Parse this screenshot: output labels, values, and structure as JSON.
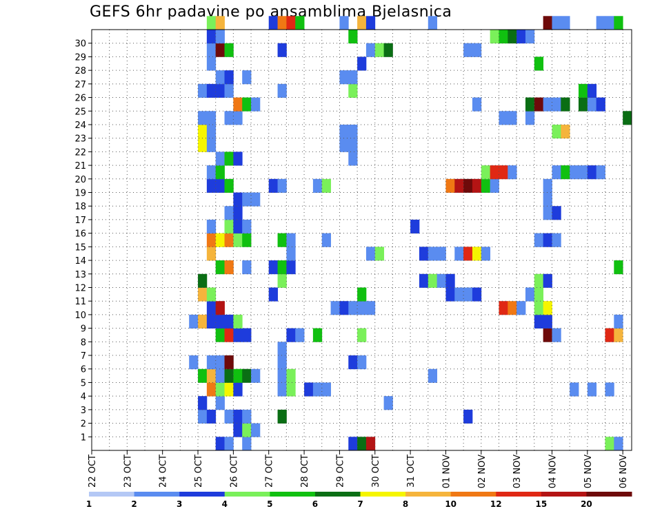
{
  "chart_data": {
    "type": "heatmap",
    "title": "GEFS 6hr padavine po ansamblima Bjelasnica",
    "xlabel": "",
    "ylabel": "",
    "x_ticks": [
      "22 OCT",
      "23 OCT",
      "24 OCT",
      "25 OCT",
      "26 OCT",
      "27 OCT",
      "28 OCT",
      "29 OCT",
      "30 OCT",
      "31 OCT",
      "01 NOV",
      "02 NOV",
      "03 NOV",
      "04 NOV",
      "05 NOV",
      "06 NOV"
    ],
    "y_ticks": [
      "1",
      "2",
      "3",
      "4",
      "5",
      "6",
      "7",
      "8",
      "9",
      "10",
      "11",
      "12",
      "13",
      "14",
      "15",
      "16",
      "17",
      "18",
      "19",
      "20",
      "21",
      "22",
      "23",
      "24",
      "25",
      "26",
      "27",
      "28",
      "29",
      "30"
    ],
    "y_range": [
      0,
      30
    ],
    "grid": true,
    "colorbar": {
      "levels": [
        "1",
        "2",
        "3",
        "4",
        "5",
        "6",
        "7",
        "8",
        "10",
        "12",
        "15",
        "20"
      ],
      "colors": [
        "#b4c8f5",
        "#5a8cf0",
        "#1e3cdc",
        "#7af05a",
        "#10c010",
        "#0a6e14",
        "#f5f500",
        "#f5b43c",
        "#f07814",
        "#e02814",
        "#b41414",
        "#6e0a0a"
      ]
    },
    "cells": [
      {
        "m": 0,
        "t": 14,
        "c": 2
      },
      {
        "m": 0,
        "t": 15,
        "c": 1
      },
      {
        "m": 0,
        "t": 17,
        "c": 1
      },
      {
        "m": 0,
        "t": 29,
        "c": 2
      },
      {
        "m": 0,
        "t": 30,
        "c": 5
      },
      {
        "m": 0,
        "t": 31,
        "c": 10
      },
      {
        "m": 0,
        "t": 58,
        "c": 3
      },
      {
        "m": 0,
        "t": 59,
        "c": 1
      },
      {
        "m": 1,
        "t": 16,
        "c": 2
      },
      {
        "m": 1,
        "t": 17,
        "c": 3
      },
      {
        "m": 1,
        "t": 18,
        "c": 1
      },
      {
        "m": 2,
        "t": 12,
        "c": 1
      },
      {
        "m": 2,
        "t": 13,
        "c": 2
      },
      {
        "m": 2,
        "t": 15,
        "c": 1
      },
      {
        "m": 2,
        "t": 16,
        "c": 2
      },
      {
        "m": 2,
        "t": 17,
        "c": 1
      },
      {
        "m": 2,
        "t": 21,
        "c": 5
      },
      {
        "m": 2,
        "t": 42,
        "c": 2
      },
      {
        "m": 3,
        "t": 12,
        "c": 2
      },
      {
        "m": 3,
        "t": 14,
        "c": 1
      },
      {
        "m": 3,
        "t": 33,
        "c": 1
      },
      {
        "m": 4,
        "t": 13,
        "c": 8
      },
      {
        "m": 4,
        "t": 14,
        "c": 3
      },
      {
        "m": 4,
        "t": 15,
        "c": 6
      },
      {
        "m": 4,
        "t": 16,
        "c": 2
      },
      {
        "m": 4,
        "t": 21,
        "c": 1
      },
      {
        "m": 4,
        "t": 22,
        "c": 3
      },
      {
        "m": 4,
        "t": 24,
        "c": 2
      },
      {
        "m": 4,
        "t": 25,
        "c": 1
      },
      {
        "m": 4,
        "t": 26,
        "c": 1
      },
      {
        "m": 4,
        "t": 54,
        "c": 1
      },
      {
        "m": 4,
        "t": 56,
        "c": 1
      },
      {
        "m": 4,
        "t": 58,
        "c": 1
      },
      {
        "m": 5,
        "t": 12,
        "c": 4
      },
      {
        "m": 5,
        "t": 13,
        "c": 7
      },
      {
        "m": 5,
        "t": 14,
        "c": 1
      },
      {
        "m": 5,
        "t": 15,
        "c": 5
      },
      {
        "m": 5,
        "t": 16,
        "c": 4
      },
      {
        "m": 5,
        "t": 17,
        "c": 5
      },
      {
        "m": 5,
        "t": 18,
        "c": 1
      },
      {
        "m": 5,
        "t": 21,
        "c": 1
      },
      {
        "m": 5,
        "t": 22,
        "c": 3
      },
      {
        "m": 5,
        "t": 38,
        "c": 1
      },
      {
        "m": 6,
        "t": 11,
        "c": 1
      },
      {
        "m": 6,
        "t": 13,
        "c": 1
      },
      {
        "m": 6,
        "t": 14,
        "c": 1
      },
      {
        "m": 6,
        "t": 15,
        "c": 11
      },
      {
        "m": 6,
        "t": 21,
        "c": 1
      },
      {
        "m": 6,
        "t": 29,
        "c": 2
      },
      {
        "m": 6,
        "t": 30,
        "c": 1
      },
      {
        "m": 7,
        "t": 21,
        "c": 1
      },
      {
        "m": 8,
        "t": 14,
        "c": 4
      },
      {
        "m": 8,
        "t": 15,
        "c": 9
      },
      {
        "m": 8,
        "t": 16,
        "c": 2
      },
      {
        "m": 8,
        "t": 17,
        "c": 2
      },
      {
        "m": 8,
        "t": 22,
        "c": 2
      },
      {
        "m": 8,
        "t": 23,
        "c": 1
      },
      {
        "m": 8,
        "t": 25,
        "c": 4
      },
      {
        "m": 8,
        "t": 30,
        "c": 3
      },
      {
        "m": 8,
        "t": 51,
        "c": 11
      },
      {
        "m": 8,
        "t": 52,
        "c": 1
      },
      {
        "m": 8,
        "t": 58,
        "c": 9
      },
      {
        "m": 8,
        "t": 59,
        "c": 7
      },
      {
        "m": 9,
        "t": 11,
        "c": 1
      },
      {
        "m": 9,
        "t": 12,
        "c": 7
      },
      {
        "m": 9,
        "t": 13,
        "c": 2
      },
      {
        "m": 9,
        "t": 14,
        "c": 2
      },
      {
        "m": 9,
        "t": 15,
        "c": 2
      },
      {
        "m": 9,
        "t": 16,
        "c": 3
      },
      {
        "m": 9,
        "t": 50,
        "c": 2
      },
      {
        "m": 9,
        "t": 51,
        "c": 2
      },
      {
        "m": 9,
        "t": 59,
        "c": 1
      },
      {
        "m": 10,
        "t": 13,
        "c": 2
      },
      {
        "m": 10,
        "t": 14,
        "c": 10
      },
      {
        "m": 10,
        "t": 27,
        "c": 1
      },
      {
        "m": 10,
        "t": 28,
        "c": 2
      },
      {
        "m": 10,
        "t": 29,
        "c": 1
      },
      {
        "m": 10,
        "t": 30,
        "c": 1
      },
      {
        "m": 10,
        "t": 31,
        "c": 1
      },
      {
        "m": 10,
        "t": 46,
        "c": 9
      },
      {
        "m": 10,
        "t": 47,
        "c": 8
      },
      {
        "m": 10,
        "t": 48,
        "c": 1
      },
      {
        "m": 10,
        "t": 50,
        "c": 3
      },
      {
        "m": 10,
        "t": 51,
        "c": 6
      },
      {
        "m": 11,
        "t": 12,
        "c": 7
      },
      {
        "m": 11,
        "t": 13,
        "c": 3
      },
      {
        "m": 11,
        "t": 20,
        "c": 2
      },
      {
        "m": 11,
        "t": 30,
        "c": 4
      },
      {
        "m": 11,
        "t": 40,
        "c": 2
      },
      {
        "m": 11,
        "t": 41,
        "c": 1
      },
      {
        "m": 11,
        "t": 42,
        "c": 1
      },
      {
        "m": 11,
        "t": 43,
        "c": 2
      },
      {
        "m": 11,
        "t": 49,
        "c": 1
      },
      {
        "m": 11,
        "t": 50,
        "c": 3
      },
      {
        "m": 12,
        "t": 12,
        "c": 5
      },
      {
        "m": 12,
        "t": 21,
        "c": 3
      },
      {
        "m": 12,
        "t": 37,
        "c": 2
      },
      {
        "m": 12,
        "t": 38,
        "c": 3
      },
      {
        "m": 12,
        "t": 39,
        "c": 1
      },
      {
        "m": 12,
        "t": 40,
        "c": 2
      },
      {
        "m": 12,
        "t": 50,
        "c": 3
      },
      {
        "m": 12,
        "t": 51,
        "c": 2
      },
      {
        "m": 13,
        "t": 14,
        "c": 4
      },
      {
        "m": 13,
        "t": 15,
        "c": 8
      },
      {
        "m": 13,
        "t": 17,
        "c": 1
      },
      {
        "m": 13,
        "t": 20,
        "c": 2
      },
      {
        "m": 13,
        "t": 21,
        "c": 4
      },
      {
        "m": 13,
        "t": 22,
        "c": 2
      },
      {
        "m": 13,
        "t": 59,
        "c": 4
      },
      {
        "m": 14,
        "t": 13,
        "c": 7
      },
      {
        "m": 14,
        "t": 22,
        "c": 1
      },
      {
        "m": 14,
        "t": 31,
        "c": 1
      },
      {
        "m": 14,
        "t": 32,
        "c": 3
      },
      {
        "m": 14,
        "t": 37,
        "c": 2
      },
      {
        "m": 14,
        "t": 38,
        "c": 1
      },
      {
        "m": 14,
        "t": 39,
        "c": 1
      },
      {
        "m": 14,
        "t": 41,
        "c": 1
      },
      {
        "m": 14,
        "t": 42,
        "c": 9
      },
      {
        "m": 14,
        "t": 43,
        "c": 6
      },
      {
        "m": 14,
        "t": 44,
        "c": 1
      },
      {
        "m": 15,
        "t": 13,
        "c": 8
      },
      {
        "m": 15,
        "t": 14,
        "c": 6
      },
      {
        "m": 15,
        "t": 15,
        "c": 8
      },
      {
        "m": 15,
        "t": 16,
        "c": 3
      },
      {
        "m": 15,
        "t": 17,
        "c": 4
      },
      {
        "m": 15,
        "t": 21,
        "c": 4
      },
      {
        "m": 15,
        "t": 22,
        "c": 1
      },
      {
        "m": 15,
        "t": 26,
        "c": 1
      },
      {
        "m": 15,
        "t": 50,
        "c": 1
      },
      {
        "m": 15,
        "t": 51,
        "c": 2
      },
      {
        "m": 15,
        "t": 52,
        "c": 1
      },
      {
        "m": 16,
        "t": 13,
        "c": 1
      },
      {
        "m": 16,
        "t": 15,
        "c": 3
      },
      {
        "m": 16,
        "t": 16,
        "c": 2
      },
      {
        "m": 16,
        "t": 17,
        "c": 1
      },
      {
        "m": 16,
        "t": 36,
        "c": 2
      },
      {
        "m": 17,
        "t": 15,
        "c": 1
      },
      {
        "m": 17,
        "t": 16,
        "c": 2
      },
      {
        "m": 17,
        "t": 51,
        "c": 1
      },
      {
        "m": 17,
        "t": 52,
        "c": 2
      },
      {
        "m": 18,
        "t": 16,
        "c": 2
      },
      {
        "m": 18,
        "t": 17,
        "c": 1
      },
      {
        "m": 18,
        "t": 18,
        "c": 1
      },
      {
        "m": 18,
        "t": 51,
        "c": 1
      },
      {
        "m": 19,
        "t": 13,
        "c": 2
      },
      {
        "m": 19,
        "t": 14,
        "c": 2
      },
      {
        "m": 19,
        "t": 15,
        "c": 4
      },
      {
        "m": 19,
        "t": 20,
        "c": 2
      },
      {
        "m": 19,
        "t": 21,
        "c": 1
      },
      {
        "m": 19,
        "t": 25,
        "c": 1
      },
      {
        "m": 19,
        "t": 26,
        "c": 3
      },
      {
        "m": 19,
        "t": 40,
        "c": 8
      },
      {
        "m": 19,
        "t": 41,
        "c": 10
      },
      {
        "m": 19,
        "t": 42,
        "c": 11
      },
      {
        "m": 19,
        "t": 43,
        "c": 10
      },
      {
        "m": 19,
        "t": 44,
        "c": 4
      },
      {
        "m": 19,
        "t": 45,
        "c": 1
      },
      {
        "m": 19,
        "t": 51,
        "c": 1
      },
      {
        "m": 20,
        "t": 13,
        "c": 1
      },
      {
        "m": 20,
        "t": 14,
        "c": 4
      },
      {
        "m": 20,
        "t": 44,
        "c": 3
      },
      {
        "m": 20,
        "t": 45,
        "c": 9
      },
      {
        "m": 20,
        "t": 46,
        "c": 9
      },
      {
        "m": 20,
        "t": 47,
        "c": 1
      },
      {
        "m": 20,
        "t": 52,
        "c": 1
      },
      {
        "m": 20,
        "t": 53,
        "c": 4
      },
      {
        "m": 20,
        "t": 54,
        "c": 1
      },
      {
        "m": 20,
        "t": 55,
        "c": 1
      },
      {
        "m": 20,
        "t": 56,
        "c": 2
      },
      {
        "m": 20,
        "t": 57,
        "c": 1
      },
      {
        "m": 21,
        "t": 14,
        "c": 1
      },
      {
        "m": 21,
        "t": 15,
        "c": 4
      },
      {
        "m": 21,
        "t": 16,
        "c": 2
      },
      {
        "m": 21,
        "t": 29,
        "c": 1
      },
      {
        "m": 22,
        "t": 12,
        "c": 6
      },
      {
        "m": 22,
        "t": 13,
        "c": 1
      },
      {
        "m": 22,
        "t": 28,
        "c": 1
      },
      {
        "m": 22,
        "t": 29,
        "c": 1
      },
      {
        "m": 23,
        "t": 12,
        "c": 6
      },
      {
        "m": 23,
        "t": 13,
        "c": 1
      },
      {
        "m": 23,
        "t": 28,
        "c": 1
      },
      {
        "m": 23,
        "t": 29,
        "c": 1
      },
      {
        "m": 23,
        "t": 52,
        "c": 3
      },
      {
        "m": 23,
        "t": 53,
        "c": 7
      },
      {
        "m": 24,
        "t": 12,
        "c": 1
      },
      {
        "m": 24,
        "t": 13,
        "c": 1
      },
      {
        "m": 24,
        "t": 15,
        "c": 1
      },
      {
        "m": 24,
        "t": 16,
        "c": 1
      },
      {
        "m": 24,
        "t": 46,
        "c": 1
      },
      {
        "m": 24,
        "t": 47,
        "c": 1
      },
      {
        "m": 24,
        "t": 49,
        "c": 1
      },
      {
        "m": 24,
        "t": 60,
        "c": 5
      },
      {
        "m": 25,
        "t": 16,
        "c": 8
      },
      {
        "m": 25,
        "t": 17,
        "c": 4
      },
      {
        "m": 25,
        "t": 18,
        "c": 1
      },
      {
        "m": 25,
        "t": 43,
        "c": 1
      },
      {
        "m": 25,
        "t": 49,
        "c": 5
      },
      {
        "m": 25,
        "t": 50,
        "c": 11
      },
      {
        "m": 25,
        "t": 51,
        "c": 1
      },
      {
        "m": 25,
        "t": 52,
        "c": 1
      },
      {
        "m": 25,
        "t": 53,
        "c": 5
      },
      {
        "m": 25,
        "t": 55,
        "c": 5
      },
      {
        "m": 25,
        "t": 56,
        "c": 1
      },
      {
        "m": 25,
        "t": 57,
        "c": 2
      },
      {
        "m": 26,
        "t": 12,
        "c": 1
      },
      {
        "m": 26,
        "t": 13,
        "c": 2
      },
      {
        "m": 26,
        "t": 14,
        "c": 2
      },
      {
        "m": 26,
        "t": 15,
        "c": 1
      },
      {
        "m": 26,
        "t": 21,
        "c": 1
      },
      {
        "m": 26,
        "t": 29,
        "c": 3
      },
      {
        "m": 26,
        "t": 55,
        "c": 4
      },
      {
        "m": 26,
        "t": 56,
        "c": 2
      },
      {
        "m": 27,
        "t": 14,
        "c": 1
      },
      {
        "m": 27,
        "t": 15,
        "c": 2
      },
      {
        "m": 27,
        "t": 17,
        "c": 1
      },
      {
        "m": 27,
        "t": 28,
        "c": 1
      },
      {
        "m": 27,
        "t": 29,
        "c": 1
      },
      {
        "m": 28,
        "t": 13,
        "c": 1
      },
      {
        "m": 28,
        "t": 30,
        "c": 2
      },
      {
        "m": 28,
        "t": 50,
        "c": 4
      },
      {
        "m": 29,
        "t": 13,
        "c": 1
      },
      {
        "m": 29,
        "t": 14,
        "c": 11
      },
      {
        "m": 29,
        "t": 15,
        "c": 4
      },
      {
        "m": 29,
        "t": 21,
        "c": 2
      },
      {
        "m": 29,
        "t": 31,
        "c": 1
      },
      {
        "m": 29,
        "t": 32,
        "c": 3
      },
      {
        "m": 29,
        "t": 33,
        "c": 5
      },
      {
        "m": 29,
        "t": 42,
        "c": 1
      },
      {
        "m": 29,
        "t": 43,
        "c": 1
      },
      {
        "m": 30,
        "t": 13,
        "c": 2
      },
      {
        "m": 30,
        "t": 14,
        "c": 1
      },
      {
        "m": 30,
        "t": 29,
        "c": 4
      },
      {
        "m": 30,
        "t": 45,
        "c": 3
      },
      {
        "m": 30,
        "t": 46,
        "c": 4
      },
      {
        "m": 30,
        "t": 47,
        "c": 5
      },
      {
        "m": 30,
        "t": 48,
        "c": 2
      },
      {
        "m": 30,
        "t": 49,
        "c": 1
      },
      {
        "m": 31,
        "t": 13,
        "c": 3
      },
      {
        "m": 31,
        "t": 14,
        "c": 7
      },
      {
        "m": 31,
        "t": 20,
        "c": 2
      },
      {
        "m": 31,
        "t": 21,
        "c": 8
      },
      {
        "m": 31,
        "t": 22,
        "c": 9
      },
      {
        "m": 31,
        "t": 23,
        "c": 4
      },
      {
        "m": 31,
        "t": 28,
        "c": 1
      },
      {
        "m": 31,
        "t": 30,
        "c": 7
      },
      {
        "m": 31,
        "t": 31,
        "c": 2
      },
      {
        "m": 31,
        "t": 38,
        "c": 1
      },
      {
        "m": 31,
        "t": 51,
        "c": 11
      },
      {
        "m": 31,
        "t": 52,
        "c": 1
      },
      {
        "m": 31,
        "t": 53,
        "c": 1
      },
      {
        "m": 31,
        "t": 57,
        "c": 1
      },
      {
        "m": 31,
        "t": 58,
        "c": 1
      },
      {
        "m": 31,
        "t": 59,
        "c": 4
      }
    ]
  }
}
